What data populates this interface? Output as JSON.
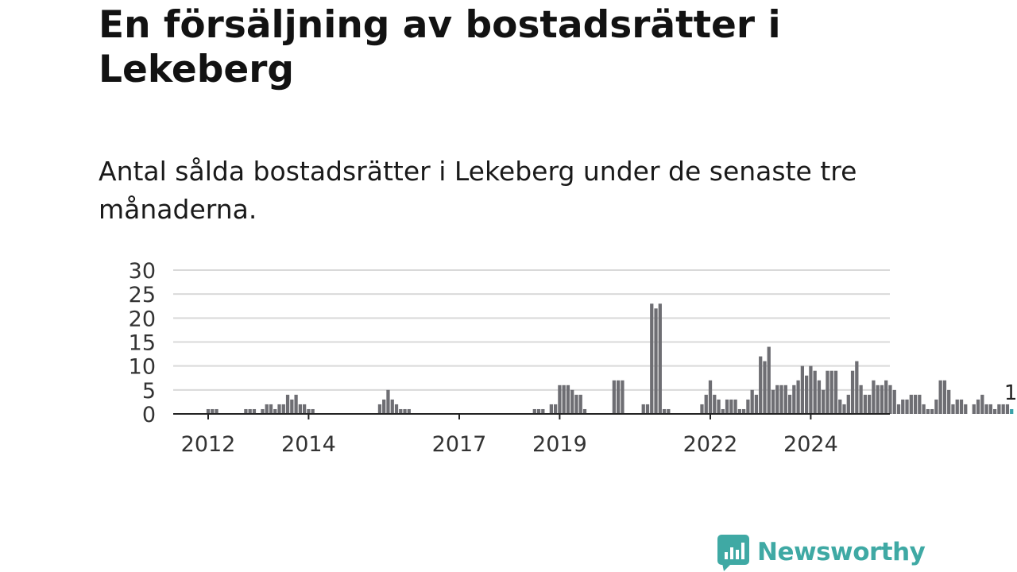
{
  "title": "En försäljning av bostadsrätter i Lekeberg",
  "subtitle": "Antal sålda bostadsrätter i Lekeberg under de senaste tre månaderna.",
  "brand": {
    "name": "Newsworthy",
    "icon": "newsworthy-chat-bars-icon",
    "color": "#3fa9a4"
  },
  "chart_data": {
    "type": "bar",
    "ylim": [
      0,
      30
    ],
    "y_ticks": [
      0,
      5,
      10,
      15,
      20,
      25,
      30
    ],
    "x_tick_labels": [
      "2012",
      "2014",
      "2017",
      "2019",
      "2022",
      "2024"
    ],
    "grid": true,
    "bar_color": "#6e6e73",
    "highlight_color": "#3aa1a8",
    "highlight_label": "1",
    "start_month": "2011-05",
    "values": [
      0,
      0,
      0,
      0,
      0,
      0,
      0,
      0,
      1,
      1,
      1,
      0,
      0,
      0,
      0,
      0,
      0,
      1,
      1,
      1,
      0,
      1,
      2,
      2,
      1,
      2,
      2,
      4,
      3,
      4,
      2,
      2,
      1,
      1,
      0,
      0,
      0,
      0,
      0,
      0,
      0,
      0,
      0,
      0,
      0,
      0,
      0,
      0,
      0,
      2,
      3,
      5,
      3,
      2,
      1,
      1,
      1,
      0,
      0,
      0,
      0,
      0,
      0,
      0,
      0,
      0,
      0,
      0,
      0,
      0,
      0,
      0,
      0,
      0,
      0,
      0,
      0,
      0,
      0,
      0,
      0,
      0,
      0,
      0,
      0,
      0,
      1,
      1,
      1,
      0,
      2,
      2,
      6,
      6,
      6,
      5,
      4,
      4,
      1,
      0,
      0,
      0,
      0,
      0,
      0,
      7,
      7,
      7,
      0,
      0,
      0,
      0,
      2,
      2,
      23,
      22,
      23,
      1,
      1,
      0,
      0,
      0,
      0,
      0,
      0,
      0,
      2,
      4,
      7,
      4,
      3,
      1,
      3,
      3,
      3,
      1,
      1,
      3,
      5,
      4,
      12,
      11,
      14,
      5,
      6,
      6,
      6,
      4,
      6,
      7,
      10,
      8,
      10,
      9,
      7,
      5,
      9,
      9,
      9,
      3,
      2,
      4,
      9,
      11,
      6,
      4,
      4,
      7,
      6,
      6,
      7,
      6,
      5,
      2,
      3,
      3,
      4,
      4,
      4,
      2,
      1,
      1,
      3,
      7,
      7,
      5,
      2,
      3,
      3,
      2,
      0,
      2,
      3,
      4,
      2,
      2,
      1,
      2,
      2,
      2,
      1
    ]
  }
}
